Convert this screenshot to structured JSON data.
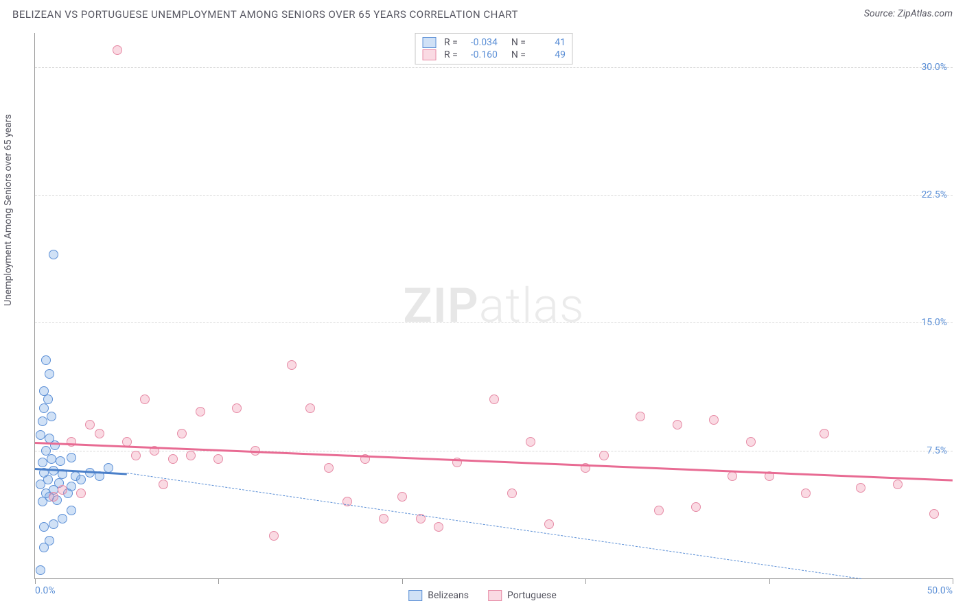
{
  "title": "BELIZEAN VS PORTUGUESE UNEMPLOYMENT AMONG SENIORS OVER 65 YEARS CORRELATION CHART",
  "source": "Source: ZipAtlas.com",
  "ylabel": "Unemployment Among Seniors over 65 years",
  "watermark": {
    "bold": "ZIP",
    "rest": "atlas"
  },
  "chart": {
    "type": "scatter",
    "background_color": "#ffffff",
    "grid_color": "#d8d8d8",
    "axis_color": "#999999",
    "text_color": "#555560",
    "value_color": "#5b8fd6",
    "xlim": [
      0,
      50
    ],
    "ylim": [
      0,
      32
    ],
    "xticks": [
      0,
      10,
      20,
      30,
      40,
      50
    ],
    "xtick_labels_shown": {
      "0": "0.0%",
      "50": "50.0%"
    },
    "yticks": [
      7.5,
      15.0,
      22.5,
      30.0
    ],
    "ytick_labels": [
      "7.5%",
      "15.0%",
      "22.5%",
      "30.0%"
    ],
    "marker_radius": 7,
    "marker_stroke_width": 1.2,
    "title_fontsize": 15,
    "label_fontsize": 14,
    "tick_fontsize": 14
  },
  "series": [
    {
      "name": "Belizeans",
      "fill_color": "rgba(120,170,230,0.35)",
      "stroke_color": "#5b8fd6",
      "trend_color": "#4a7fc9",
      "trend_dash_color": "#5b8fd6",
      "R": "-0.034",
      "N": "41",
      "trend": {
        "x0": 0,
        "y0": 6.5,
        "x1": 5,
        "y1": 6.2
      },
      "extrapolation": {
        "x0": 5,
        "y0": 6.2,
        "x1": 45,
        "y1": 0
      },
      "points": [
        [
          0.3,
          0.5
        ],
        [
          0.5,
          1.8
        ],
        [
          0.8,
          2.2
        ],
        [
          0.5,
          3.0
        ],
        [
          1.0,
          3.2
        ],
        [
          1.5,
          3.5
        ],
        [
          0.4,
          4.5
        ],
        [
          0.8,
          4.8
        ],
        [
          1.2,
          4.6
        ],
        [
          0.6,
          5.0
        ],
        [
          1.0,
          5.2
        ],
        [
          1.8,
          5.0
        ],
        [
          0.3,
          5.5
        ],
        [
          0.7,
          5.8
        ],
        [
          1.3,
          5.6
        ],
        [
          2.0,
          5.4
        ],
        [
          2.5,
          5.8
        ],
        [
          0.5,
          6.2
        ],
        [
          1.0,
          6.3
        ],
        [
          1.5,
          6.1
        ],
        [
          2.2,
          6.0
        ],
        [
          3.0,
          6.2
        ],
        [
          3.5,
          6.0
        ],
        [
          0.4,
          6.8
        ],
        [
          0.9,
          7.0
        ],
        [
          1.4,
          6.9
        ],
        [
          2.0,
          7.1
        ],
        [
          4.0,
          6.5
        ],
        [
          0.6,
          7.5
        ],
        [
          1.1,
          7.8
        ],
        [
          0.3,
          8.4
        ],
        [
          0.8,
          8.2
        ],
        [
          0.4,
          9.2
        ],
        [
          0.9,
          9.5
        ],
        [
          0.5,
          10.0
        ],
        [
          0.7,
          10.5
        ],
        [
          0.5,
          11.0
        ],
        [
          0.8,
          12.0
        ],
        [
          0.6,
          12.8
        ],
        [
          1.0,
          19.0
        ],
        [
          2.0,
          4.0
        ]
      ]
    },
    {
      "name": "Portuguese",
      "fill_color": "rgba(240,150,175,0.35)",
      "stroke_color": "#e68aa5",
      "trend_color": "#e86b93",
      "R": "-0.160",
      "N": "49",
      "trend": {
        "x0": 0,
        "y0": 8.0,
        "x1": 50,
        "y1": 5.8
      },
      "points": [
        [
          1.0,
          4.8
        ],
        [
          1.5,
          5.2
        ],
        [
          2.0,
          8.0
        ],
        [
          2.5,
          5.0
        ],
        [
          3.0,
          9.0
        ],
        [
          3.5,
          8.5
        ],
        [
          4.5,
          31.0
        ],
        [
          5.0,
          8.0
        ],
        [
          5.5,
          7.2
        ],
        [
          6.0,
          10.5
        ],
        [
          6.5,
          7.5
        ],
        [
          7.0,
          5.5
        ],
        [
          7.5,
          7.0
        ],
        [
          8.0,
          8.5
        ],
        [
          8.5,
          7.2
        ],
        [
          9.0,
          9.8
        ],
        [
          10.0,
          7.0
        ],
        [
          11.0,
          10.0
        ],
        [
          12.0,
          7.5
        ],
        [
          13.0,
          2.5
        ],
        [
          14.0,
          12.5
        ],
        [
          15.0,
          10.0
        ],
        [
          16.0,
          6.5
        ],
        [
          17.0,
          4.5
        ],
        [
          18.0,
          7.0
        ],
        [
          19.0,
          3.5
        ],
        [
          20.0,
          4.8
        ],
        [
          21.0,
          3.5
        ],
        [
          22.0,
          3.0
        ],
        [
          23.0,
          6.8
        ],
        [
          25.0,
          10.5
        ],
        [
          26.0,
          5.0
        ],
        [
          27.0,
          8.0
        ],
        [
          28.0,
          3.2
        ],
        [
          30.0,
          6.5
        ],
        [
          31.0,
          7.2
        ],
        [
          33.0,
          9.5
        ],
        [
          34.0,
          4.0
        ],
        [
          35.0,
          9.0
        ],
        [
          36.0,
          4.2
        ],
        [
          37.0,
          9.3
        ],
        [
          38.0,
          6.0
        ],
        [
          39.0,
          8.0
        ],
        [
          40.0,
          6.0
        ],
        [
          42.0,
          5.0
        ],
        [
          43.0,
          8.5
        ],
        [
          45.0,
          5.3
        ],
        [
          47.0,
          5.5
        ],
        [
          49.0,
          3.8
        ]
      ]
    }
  ],
  "legend_top": {
    "rows": [
      {
        "series_index": 0,
        "R_label": "R =",
        "N_label": "N ="
      },
      {
        "series_index": 1,
        "R_label": "R =",
        "N_label": "N ="
      }
    ]
  },
  "legend_bottom": {
    "items": [
      {
        "series_index": 0
      },
      {
        "series_index": 1
      }
    ]
  }
}
